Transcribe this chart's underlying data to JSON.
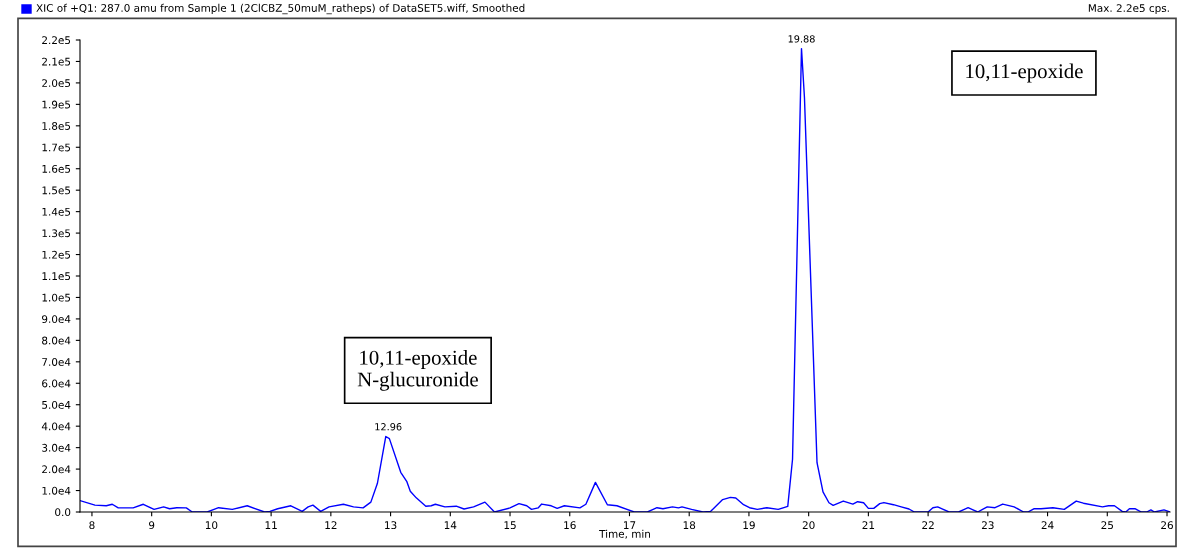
{
  "chart_data": {
    "type": "line",
    "title": "XIC of +Q1: 287.0 amu from Sample 1 (2ClCBZ_50muM_ratheps) of DataSET5.wiff, Smoothed",
    "xlabel": "Time, min",
    "x": [
      7.8,
      8.05,
      8.24,
      8.34,
      8.44,
      8.69,
      8.86,
      9.04,
      9.2,
      9.3,
      9.42,
      9.58,
      9.68,
      9.93,
      10.12,
      10.35,
      10.6,
      10.89,
      10.98,
      11.11,
      11.33,
      11.52,
      11.62,
      11.7,
      11.83,
      11.97,
      12.21,
      12.38,
      12.54,
      12.67,
      12.78,
      12.92,
      12.98,
      13.17,
      13.27,
      13.33,
      13.43,
      13.59,
      13.68,
      13.75,
      13.91,
      14.1,
      14.23,
      14.39,
      14.58,
      14.74,
      15.0,
      15.15,
      15.28,
      15.36,
      15.47,
      15.53,
      15.69,
      15.79,
      15.91,
      16.17,
      16.27,
      16.43,
      16.63,
      16.79,
      17.08,
      17.3,
      17.46,
      17.56,
      17.72,
      17.82,
      17.88,
      18.04,
      18.23,
      18.36,
      18.56,
      18.69,
      18.78,
      18.91,
      19.01,
      19.14,
      19.3,
      19.49,
      19.65,
      19.73,
      19.88,
      19.93,
      20.14,
      20.24,
      20.34,
      20.41,
      20.58,
      20.74,
      20.82,
      20.92,
      21.0,
      21.09,
      21.19,
      21.26,
      21.42,
      21.55,
      21.68,
      21.77,
      22.0,
      22.08,
      22.16,
      22.35,
      22.51,
      22.67,
      22.83,
      22.99,
      23.12,
      23.25,
      23.44,
      23.6,
      23.67,
      23.77,
      23.89,
      24.09,
      24.28,
      24.48,
      24.6,
      24.92,
      25.02,
      25.12,
      25.25,
      25.31,
      25.37,
      25.47,
      25.57,
      25.66,
      25.73,
      25.79,
      25.95,
      26.05
    ],
    "series": [
      {
        "color": "#0000ff",
        "values": [
          5300,
          3200,
          2900,
          3600,
          1900,
          1900,
          3600,
          1200,
          2400,
          1500,
          2000,
          1900,
          0,
          0,
          2000,
          1200,
          2900,
          0,
          300,
          1500,
          2900,
          300,
          2400,
          3200,
          300,
          2400,
          3600,
          2400,
          1900,
          4600,
          13400,
          35200,
          34200,
          18500,
          14300,
          9700,
          6600,
          2700,
          2900,
          3600,
          2400,
          2700,
          1400,
          2400,
          4600,
          0,
          1900,
          3900,
          2900,
          1200,
          1900,
          3700,
          2900,
          1700,
          2900,
          1900,
          3600,
          13800,
          3400,
          2900,
          0,
          0,
          2000,
          1500,
          2400,
          1900,
          2400,
          1200,
          0,
          300,
          5800,
          6800,
          6500,
          3400,
          2000,
          1200,
          2000,
          1200,
          2600,
          24600,
          216000,
          193000,
          23000,
          9400,
          4300,
          3100,
          5100,
          3700,
          4800,
          4300,
          1700,
          1700,
          3900,
          4400,
          3400,
          2400,
          1400,
          0,
          0,
          2000,
          2400,
          0,
          0,
          2000,
          0,
          2400,
          2000,
          3700,
          2400,
          0,
          0,
          1500,
          1500,
          2000,
          1200,
          5100,
          4100,
          2400,
          2900,
          2900,
          300,
          0,
          1500,
          1500,
          0,
          0,
          1000,
          0,
          1000,
          0
        ]
      }
    ],
    "xlim": [
      7.8,
      26.05
    ],
    "xticks": [
      8,
      9,
      10,
      11,
      12,
      13,
      14,
      15,
      16,
      17,
      18,
      19,
      20,
      21,
      22,
      23,
      24,
      25,
      26
    ],
    "ylim": [
      0,
      220000
    ],
    "yticks": [
      {
        "value": 0,
        "label": "0.0"
      },
      {
        "value": 10000,
        "label": "1.0e4"
      },
      {
        "value": 20000,
        "label": "2.0e4"
      },
      {
        "value": 30000,
        "label": "3.0e4"
      },
      {
        "value": 40000,
        "label": "4.0e4"
      },
      {
        "value": 50000,
        "label": "5.0e4"
      },
      {
        "value": 60000,
        "label": "6.0e4"
      },
      {
        "value": 70000,
        "label": "7.0e4"
      },
      {
        "value": 80000,
        "label": "8.0e4"
      },
      {
        "value": 90000,
        "label": "9.0e4"
      },
      {
        "value": 100000,
        "label": "1.0e5"
      },
      {
        "value": 110000,
        "label": "1.1e5"
      },
      {
        "value": 120000,
        "label": "1.2e5"
      },
      {
        "value": 130000,
        "label": "1.3e5"
      },
      {
        "value": 140000,
        "label": "1.4e5"
      },
      {
        "value": 150000,
        "label": "1.5e5"
      },
      {
        "value": 160000,
        "label": "1.6e5"
      },
      {
        "value": 170000,
        "label": "1.7e5"
      },
      {
        "value": 180000,
        "label": "1.8e5"
      },
      {
        "value": 190000,
        "label": "1.9e5"
      },
      {
        "value": 200000,
        "label": "2.0e5"
      },
      {
        "value": 210000,
        "label": "2.1e5"
      },
      {
        "value": 220000,
        "label": "2.2e5"
      }
    ],
    "annotations": [
      {
        "text": "12.96",
        "x": 12.96,
        "y": 35200
      },
      {
        "text": "19.88",
        "x": 19.88,
        "y": 216000
      },
      "Max. 2.2e5 cps.",
      "10,11-epoxide\nN-glucuronide",
      "10,11-epoxide"
    ],
    "grid": false,
    "legend": false,
    "marker": "none",
    "line_style": "solid"
  }
}
